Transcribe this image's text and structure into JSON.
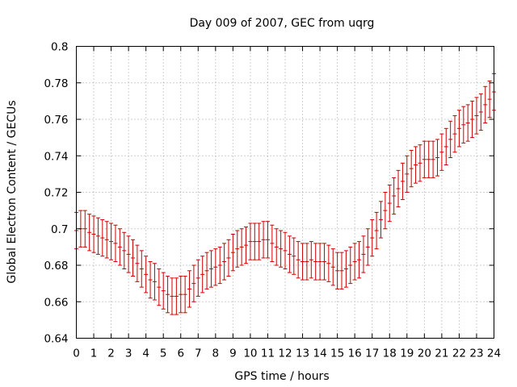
{
  "chart_data": {
    "type": "scatter",
    "title": "Day 009 of 2007, GEC from uqrg",
    "xlabel": "GPS time / hours",
    "ylabel": "Global Electron Content / GECUs",
    "xlim": [
      0,
      24
    ],
    "ylim": [
      0.64,
      0.8
    ],
    "x_ticks": [
      "0",
      "1",
      "2",
      "3",
      "4",
      "5",
      "6",
      "7",
      "8",
      "9",
      "10",
      "11",
      "12",
      "13",
      "14",
      "15",
      "16",
      "17",
      "18",
      "19",
      "20",
      "21",
      "22",
      "23",
      "24"
    ],
    "y_ticks": [
      "0.64",
      "0.66",
      "0.68",
      "0.7",
      "0.72",
      "0.74",
      "0.76",
      "0.78",
      "0.8"
    ],
    "grid": true,
    "error_bars": true,
    "series": [
      {
        "color": "#cc0000",
        "x": [
          0,
          0.25,
          0.5,
          0.75,
          1,
          1.25,
          1.5,
          1.75,
          2,
          2.25,
          2.5,
          2.75,
          3,
          3.25,
          3.5,
          3.75,
          4,
          4.25,
          4.5,
          4.75,
          5,
          5.25,
          5.5,
          5.75,
          6,
          6.25,
          6.5,
          6.75,
          7,
          7.25,
          7.5,
          7.75,
          8,
          8.25,
          8.5,
          8.75,
          9,
          9.25,
          9.5,
          9.75,
          10,
          10.25,
          10.5,
          10.75,
          11,
          11.25,
          11.5,
          11.75,
          12,
          12.25,
          12.5,
          12.75,
          13,
          13.25,
          13.5,
          13.75,
          14,
          14.25,
          14.5,
          14.75,
          15,
          15.25,
          15.5,
          15.75,
          16,
          16.25,
          16.5,
          16.75,
          17,
          17.25,
          17.5,
          17.75,
          18,
          18.25,
          18.5,
          18.75,
          19,
          19.25,
          19.5,
          19.75,
          20,
          20.25,
          20.5,
          20.75,
          21,
          21.25,
          21.5,
          21.75,
          22,
          22.25,
          22.5,
          22.75,
          23,
          23.25,
          23.5,
          23.75,
          24
        ],
        "y": [
          0.699,
          0.7,
          0.7,
          0.698,
          0.697,
          0.696,
          0.695,
          0.694,
          0.693,
          0.692,
          0.69,
          0.688,
          0.686,
          0.684,
          0.681,
          0.678,
          0.675,
          0.672,
          0.671,
          0.668,
          0.666,
          0.664,
          0.663,
          0.663,
          0.664,
          0.664,
          0.667,
          0.67,
          0.673,
          0.675,
          0.677,
          0.678,
          0.679,
          0.68,
          0.682,
          0.684,
          0.687,
          0.689,
          0.69,
          0.691,
          0.693,
          0.693,
          0.693,
          0.694,
          0.694,
          0.692,
          0.69,
          0.689,
          0.688,
          0.686,
          0.685,
          0.683,
          0.682,
          0.682,
          0.683,
          0.682,
          0.682,
          0.682,
          0.681,
          0.679,
          0.677,
          0.677,
          0.678,
          0.68,
          0.682,
          0.683,
          0.686,
          0.69,
          0.695,
          0.699,
          0.705,
          0.71,
          0.714,
          0.718,
          0.722,
          0.726,
          0.73,
          0.733,
          0.735,
          0.736,
          0.738,
          0.738,
          0.738,
          0.739,
          0.742,
          0.745,
          0.749,
          0.752,
          0.755,
          0.757,
          0.758,
          0.76,
          0.762,
          0.764,
          0.768,
          0.771,
          0.775
        ],
        "error": 0.01
      }
    ]
  }
}
